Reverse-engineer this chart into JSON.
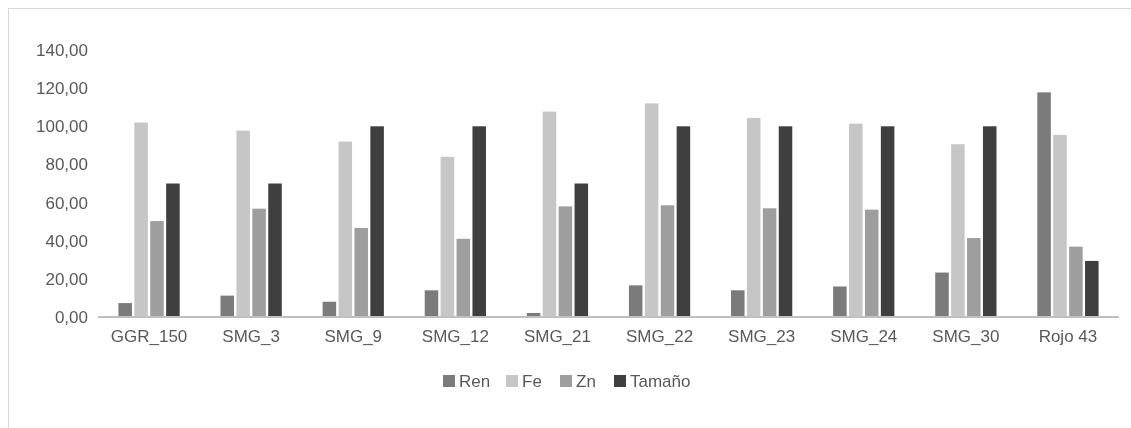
{
  "chart_data": {
    "type": "bar",
    "categories": [
      "GGR_150",
      "SMG_3",
      "SMG_9",
      "SMG_12",
      "SMG_21",
      "SMG_22",
      "SMG_23",
      "SMG_24",
      "SMG_30",
      "Rojo 43"
    ],
    "series": [
      {
        "name": "Ren",
        "color": "#7b7b7b",
        "values": [
          7.3,
          11.2,
          8,
          14,
          2.1,
          16.6,
          14,
          16,
          23.3,
          117.8
        ]
      },
      {
        "name": "Fe",
        "color": "#c6c6c6",
        "values": [
          102,
          97.7,
          92,
          84,
          107.7,
          112,
          104.4,
          101.4,
          90.6,
          95.5
        ]
      },
      {
        "name": "Zn",
        "color": "#9e9e9e",
        "values": [
          50.3,
          56.8,
          46.7,
          41,
          58,
          58.6,
          57,
          56.3,
          41.4,
          36.9
        ]
      },
      {
        "name": "Tamaño",
        "color": "#3f3f3f",
        "values": [
          70,
          70,
          100,
          100,
          70,
          100,
          100,
          100,
          100,
          29.4
        ]
      }
    ],
    "ylim": [
      0,
      140
    ],
    "yticks": [
      {
        "value": 0,
        "label": "0,00"
      },
      {
        "value": 20,
        "label": "20,00"
      },
      {
        "value": 40,
        "label": "40,00"
      },
      {
        "value": 60,
        "label": "60,00"
      },
      {
        "value": 80,
        "label": "80,00"
      },
      {
        "value": 100,
        "label": "100,00"
      },
      {
        "value": 120,
        "label": "120,00"
      },
      {
        "value": 140,
        "label": "140,00"
      }
    ],
    "legend": "bottom"
  }
}
